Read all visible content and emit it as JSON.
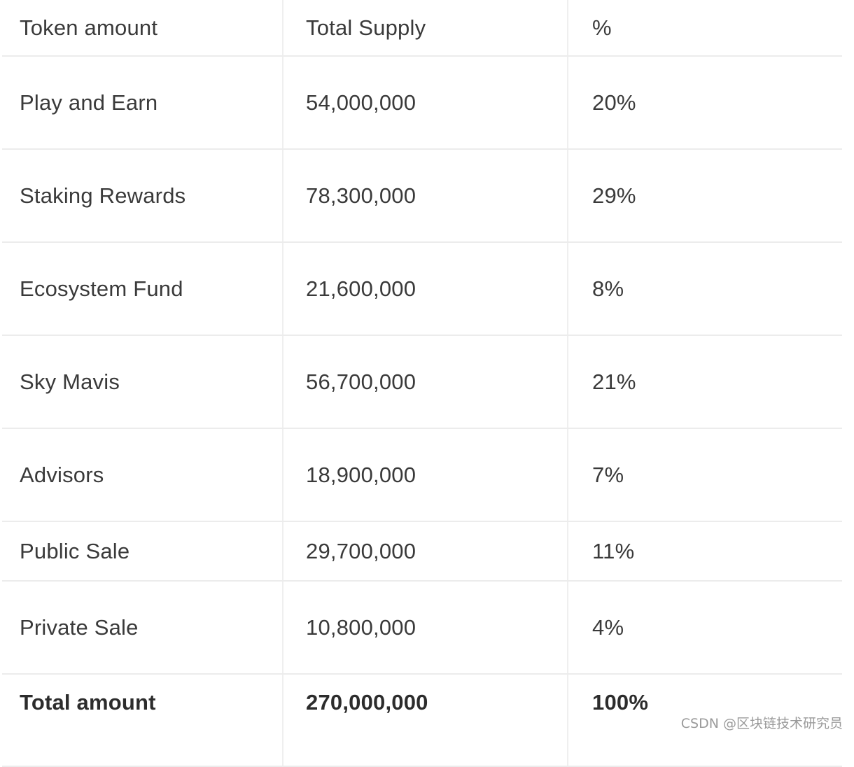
{
  "table": {
    "headers": [
      "Token amount",
      "Total Supply",
      "%"
    ],
    "rows": [
      {
        "name": "Play and Earn",
        "supply": "54,000,000",
        "percent": "20%"
      },
      {
        "name": "Staking Rewards",
        "supply": "78,300,000",
        "percent": "29%"
      },
      {
        "name": "Ecosystem Fund",
        "supply": "21,600,000",
        "percent": "8%"
      },
      {
        "name": "Sky Mavis",
        "supply": "56,700,000",
        "percent": "21%"
      },
      {
        "name": "Advisors",
        "supply": "18,900,000",
        "percent": "7%"
      },
      {
        "name": "Public Sale",
        "supply": "29,700,000",
        "percent": "11%"
      },
      {
        "name": "Private Sale",
        "supply": "10,800,000",
        "percent": "4%"
      }
    ],
    "total": {
      "name": "Total amount",
      "supply": "270,000,000",
      "percent": "100%"
    }
  },
  "watermark": "CSDN @区块链技术研究员"
}
